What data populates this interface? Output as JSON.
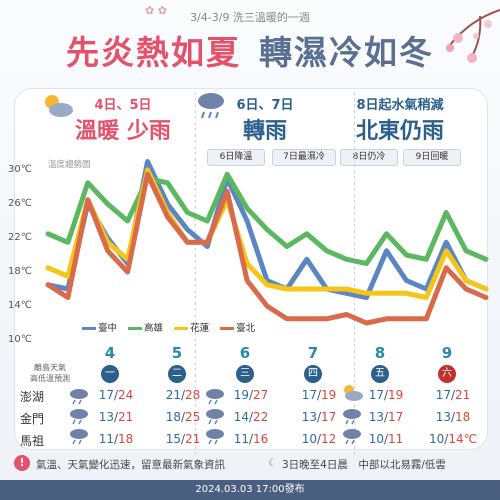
{
  "header": {
    "subtitle": "3/4-3/9 洗三溫暖的一週",
    "title_left": "先炎熱如夏",
    "title_right": "轉濕冷如冬"
  },
  "phases": [
    {
      "days": "4日、5日",
      "summary": "溫暖 少雨",
      "color": "#e5506a"
    },
    {
      "days": "6日、7日",
      "summary": "轉雨",
      "color": "#2b5f8c"
    },
    {
      "days": "8日起水氣稍減",
      "summary": "北東仍雨",
      "color": "#2b5f8c"
    }
  ],
  "notes": [
    "6日降溫",
    "7日最濕冷",
    "8日仍冷",
    "9日回暖"
  ],
  "chart_data": {
    "type": "line",
    "title": "溫度趨勢圖",
    "ylabel": "",
    "y_tick_labels": [
      "30℃",
      "26℃",
      "22℃",
      "18℃",
      "14℃",
      "10℃"
    ],
    "ylim": [
      10,
      30
    ],
    "x": [
      4.0,
      4.25,
      4.5,
      4.75,
      5.0,
      5.25,
      5.5,
      5.75,
      6.0,
      6.25,
      6.5,
      6.75,
      7.0,
      7.25,
      7.5,
      7.75,
      8.0,
      8.25,
      8.5,
      8.75,
      9.0,
      9.25,
      9.5
    ],
    "x_labels": [
      "4",
      "5",
      "6",
      "7",
      "8",
      "9"
    ],
    "series": [
      {
        "name": "臺中",
        "color": "#5b86c4",
        "values": [
          16.5,
          16,
          26,
          22,
          19,
          31,
          26,
          23,
          21,
          29,
          24,
          17,
          16,
          19.5,
          16,
          15.5,
          15,
          20.5,
          17,
          16,
          21.5,
          17,
          16
        ]
      },
      {
        "name": "高雄",
        "color": "#5cb860",
        "values": [
          22.5,
          21.5,
          28.5,
          26,
          24,
          29,
          28.5,
          25,
          24,
          29.5,
          25.5,
          23,
          21,
          22.5,
          20.5,
          19.5,
          19,
          22.5,
          20,
          19.5,
          25,
          20.5,
          19.5
        ]
      },
      {
        "name": "花蓮",
        "color": "#f5c518",
        "values": [
          18.5,
          17.5,
          26.5,
          21.5,
          19.5,
          30,
          25,
          21.5,
          21.5,
          26.5,
          19,
          16.5,
          16,
          16,
          16,
          16,
          15.5,
          15.5,
          15.5,
          15,
          20.5,
          17,
          16
        ]
      },
      {
        "name": "臺北",
        "color": "#d96a4a",
        "values": [
          16.5,
          15,
          26.5,
          20.5,
          18,
          29.5,
          24.5,
          21.5,
          21.5,
          27.5,
          17,
          14,
          12.5,
          12.5,
          12.5,
          13,
          12,
          12.5,
          12.5,
          12.5,
          18.5,
          16,
          15
        ]
      }
    ],
    "legend_position": "bottom-left"
  },
  "days": [
    {
      "date": "4",
      "weekday": "一",
      "sat": false
    },
    {
      "date": "5",
      "weekday": "二",
      "sat": false
    },
    {
      "date": "6",
      "weekday": "三",
      "sat": false
    },
    {
      "date": "7",
      "weekday": "四",
      "sat": false
    },
    {
      "date": "8",
      "weekday": "五",
      "sat": false
    },
    {
      "date": "9",
      "weekday": "六",
      "sat": true
    }
  ],
  "table": {
    "header_line1": "離島天氣",
    "header_line2": "高低溫預測",
    "rows": [
      {
        "place": "澎湖",
        "values": [
          [
            "17",
            "24"
          ],
          [
            "21",
            "28"
          ],
          [
            "19",
            "27"
          ],
          [
            "17",
            "19"
          ],
          [
            "17",
            "19"
          ],
          [
            "17",
            "21"
          ]
        ]
      },
      {
        "place": "金門",
        "values": [
          [
            "13",
            "21"
          ],
          [
            "18",
            "25"
          ],
          [
            "14",
            "22"
          ],
          [
            "13",
            "17"
          ],
          [
            "13",
            "17"
          ],
          [
            "13",
            "18"
          ]
        ]
      },
      {
        "place": "馬祖",
        "values": [
          [
            "11",
            "18"
          ],
          [
            "15",
            "21"
          ],
          [
            "11",
            "16"
          ],
          [
            "10",
            "12"
          ],
          [
            "10",
            "11"
          ],
          [
            "10",
            "14℃"
          ]
        ]
      }
    ]
  },
  "footer_note": {
    "left": "氣溫、天氣變化迅速，留意最新氣象資訊",
    "right": "3日晚至4日晨　中部以北易霧/低雲"
  },
  "footer": {
    "issued": "2024.03.03 17:00發布"
  }
}
